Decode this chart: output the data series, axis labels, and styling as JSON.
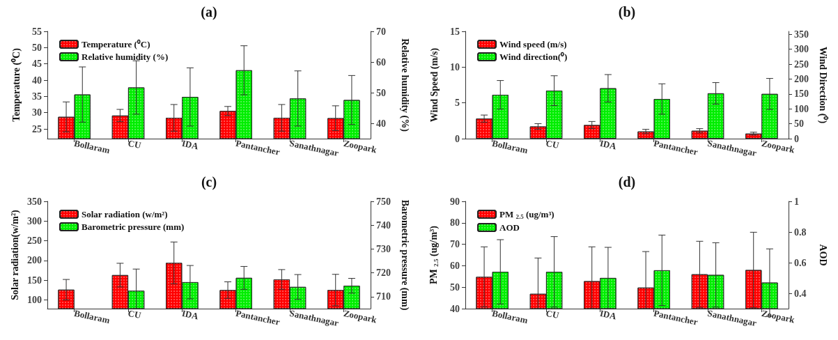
{
  "chart_data": [
    {
      "type": "bar",
      "title": "(a)",
      "ylabel": "Temperature (⁰C)",
      "y2label": "Relative humidity (%)",
      "categories": [
        "Bollaram",
        "CU",
        "IDA",
        "Pantancher",
        "Sanathnagar",
        "Zoopark"
      ],
      "ylim": [
        22,
        55
      ],
      "yticks": [
        25,
        30,
        35,
        40,
        45,
        50,
        55
      ],
      "y2lim": [
        35,
        70
      ],
      "y2ticks": [
        40,
        50,
        60,
        70
      ],
      "grid": false,
      "legend": "top left",
      "series": [
        {
          "name": "Temperature (⁰C)",
          "color": "#ff0000",
          "values": [
            28.7,
            29.1,
            28.4,
            30.5,
            28.4,
            28.3
          ],
          "errors": [
            4.6,
            1.9,
            4.1,
            1.4,
            4.1,
            3.8
          ]
        },
        {
          "name": "Relative humidity (%)",
          "color": "#00ee00",
          "axis": "y2",
          "values": [
            49.4,
            51.7,
            48.6,
            57.3,
            48.1,
            47.6
          ],
          "errors": [
            9.0,
            8.7,
            9.5,
            8.0,
            9.0,
            8.0
          ]
        }
      ]
    },
    {
      "type": "bar",
      "title": "(b)",
      "ylabel": "Wind Speed (m/s)",
      "y2label": "Wind Direction (⁰)",
      "categories": [
        "Bollaram",
        "CU",
        "IDA",
        "Pantancher",
        "Sanathnagar",
        "Zoopark"
      ],
      "ylim": [
        0,
        15
      ],
      "yticks": [
        0,
        5,
        10,
        15
      ],
      "y2lim": [
        0,
        360
      ],
      "y2ticks": [
        0,
        50,
        100,
        150,
        200,
        250,
        300,
        350
      ],
      "grid": false,
      "legend": "top left",
      "series": [
        {
          "name": "Wind speed (m/s)",
          "color": "#ff0000",
          "values": [
            2.8,
            1.7,
            1.9,
            1.0,
            1.1,
            0.7
          ],
          "errors": [
            0.5,
            0.4,
            0.5,
            0.3,
            0.3,
            0.2
          ]
        },
        {
          "name": "Wind direction(⁰)",
          "color": "#00ee00",
          "axis": "y2",
          "values": [
            147,
            161,
            169,
            133,
            152,
            150
          ],
          "errors": [
            48,
            50,
            46,
            51,
            36,
            52
          ]
        }
      ]
    },
    {
      "type": "bar",
      "title": "(c)",
      "ylabel": "Solar radiation(w/m²)",
      "y2label": "Barometric pressure (mm)",
      "categories": [
        "Bollaram",
        "CU",
        "IDA",
        "Pantancher",
        "Sanathnagar",
        "Zoopark"
      ],
      "ylim": [
        78,
        350
      ],
      "yticks": [
        100,
        150,
        200,
        250,
        300,
        350
      ],
      "y2lim": [
        705,
        750
      ],
      "y2ticks": [
        710,
        720,
        730,
        740,
        750
      ],
      "grid": false,
      "legend": "top left",
      "series": [
        {
          "name": "Solar radiation (w/m²)",
          "color": "#ff0000",
          "values": [
            126,
            163,
            194,
            125,
            152,
            125
          ],
          "errors": [
            26,
            30,
            53,
            21,
            25,
            40
          ]
        },
        {
          "name": "Barometric pressure (mm)",
          "color": "#00ee00",
          "axis": "y2",
          "values": [
            null,
            712.5,
            716.1,
            717.9,
            714.1,
            714.6
          ],
          "errors": [
            null,
            [
              705,
              721.6
            ],
            7,
            4.8,
            5.2,
            3.1
          ]
        }
      ]
    },
    {
      "type": "bar",
      "title": "(d)",
      "ylabel": "PM $_{2.5}$ (ug/m³)",
      "y2label": "AOD",
      "categories": [
        "Bollaram",
        "CU",
        "IDA",
        "Pantancher",
        "Sanathnagar",
        "Zoopark"
      ],
      "ylim": [
        40,
        90
      ],
      "yticks": [
        40,
        50,
        60,
        70,
        80,
        90
      ],
      "y2lim": [
        0.3,
        1
      ],
      "y2ticks": [
        0.4,
        0.6,
        0.8,
        1
      ],
      "grid": false,
      "legend": "top left",
      "series": [
        {
          "name": "PM $_{2.5}$ (ug/m³)",
          "color": "#ff0000",
          "values": [
            54.8,
            46.9,
            52.8,
            49.8,
            56.0,
            58.0
          ],
          "errors": [
            14,
            [
              40,
              63.6
            ],
            [
              40,
              68.8
            ],
            [
              40,
              66.6
            ],
            15.4,
            17.6
          ]
        },
        {
          "name": "AOD",
          "color": "#00ee00",
          "axis": "y2",
          "values": [
            0.54,
            0.54,
            0.5,
            0.55,
            0.52,
            0.47
          ],
          "errors": [
            0.21,
            0.23,
            0.2,
            0.23,
            0.21,
            0.22
          ]
        }
      ]
    }
  ]
}
